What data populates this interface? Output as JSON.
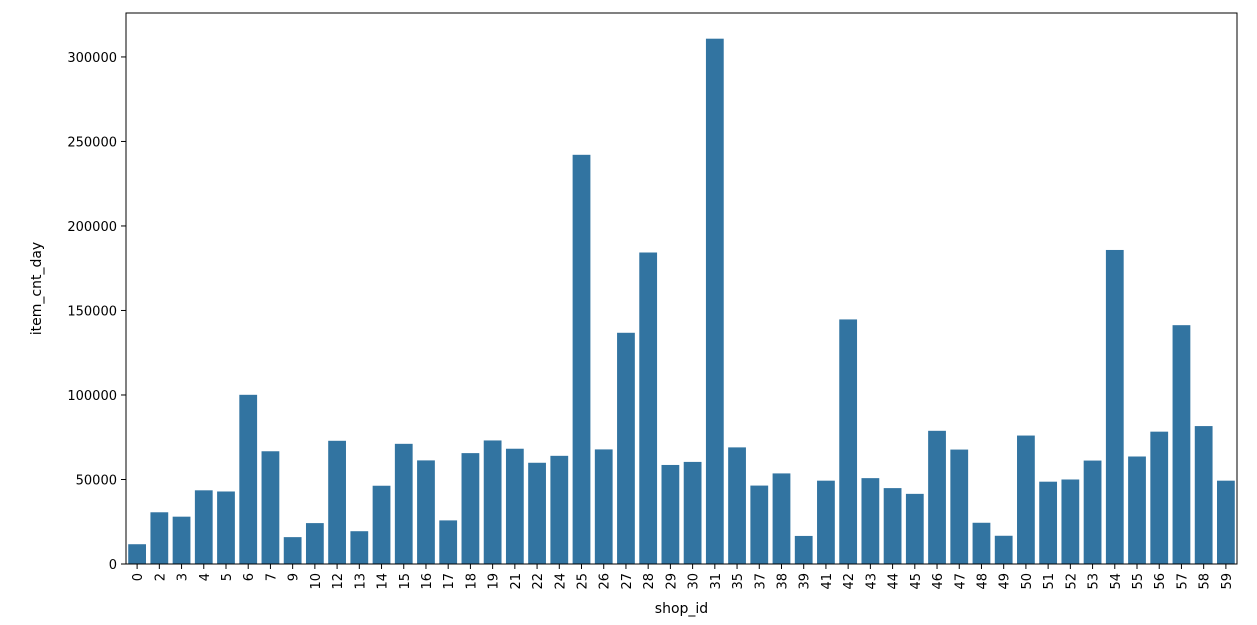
{
  "chart_data": {
    "type": "bar",
    "xlabel": "shop_id",
    "ylabel": "item_cnt_day",
    "ylim": [
      0,
      326000
    ],
    "yticks": [
      0,
      50000,
      100000,
      150000,
      200000,
      250000,
      300000
    ],
    "grid": false,
    "bar_color": "#3274a1",
    "categories": [
      "0",
      "2",
      "3",
      "4",
      "5",
      "6",
      "7",
      "9",
      "10",
      "12",
      "13",
      "14",
      "15",
      "16",
      "17",
      "18",
      "19",
      "21",
      "22",
      "24",
      "25",
      "26",
      "27",
      "28",
      "29",
      "30",
      "31",
      "35",
      "37",
      "38",
      "39",
      "41",
      "42",
      "43",
      "44",
      "45",
      "46",
      "47",
      "48",
      "49",
      "50",
      "51",
      "52",
      "53",
      "54",
      "55",
      "56",
      "57",
      "58",
      "59"
    ],
    "values": [
      11700,
      30600,
      28000,
      43600,
      42900,
      100100,
      66700,
      15900,
      24200,
      72900,
      19400,
      46300,
      71100,
      61300,
      25800,
      65600,
      73100,
      68200,
      59900,
      64000,
      242100,
      67800,
      136800,
      184300,
      58600,
      60400,
      310800,
      69000,
      46400,
      53600,
      16600,
      49300,
      144700,
      50800,
      44900,
      41500,
      78800,
      67700,
      24400,
      16700,
      76000,
      48700,
      50000,
      61200,
      185800,
      63600,
      78300,
      141300,
      81600,
      49300
    ]
  }
}
